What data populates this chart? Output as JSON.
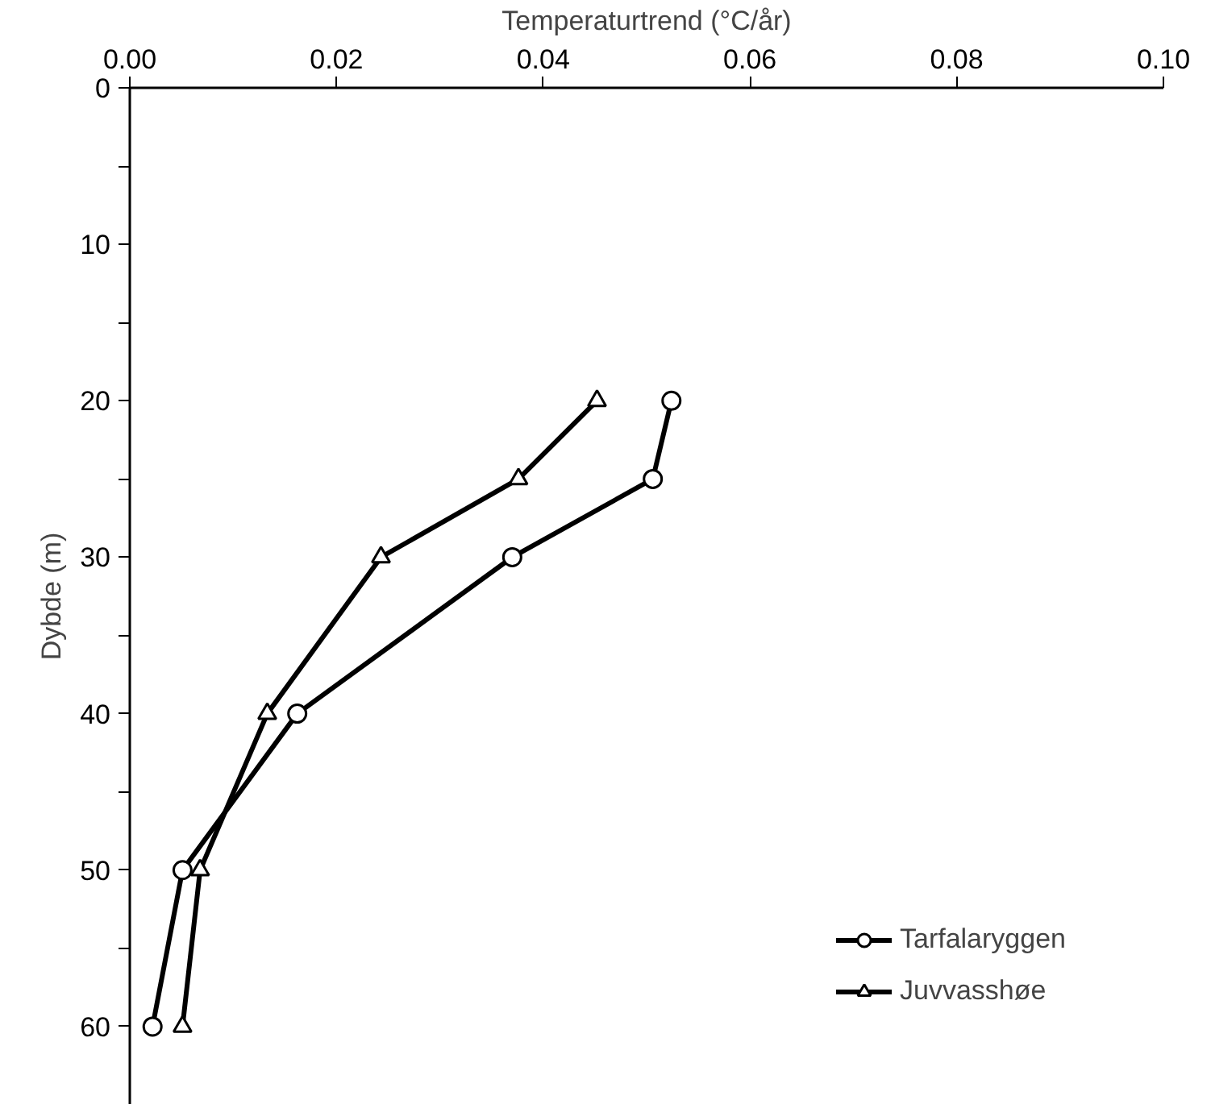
{
  "chart_data": {
    "type": "line",
    "xlabel": "Temperaturtrend (°C/år)",
    "ylabel": "Dybde (m)",
    "xlim": [
      0,
      0.1
    ],
    "xticks": [
      {
        "value": 0,
        "label": "0.00"
      },
      {
        "value": 0.02,
        "label": "0.02"
      },
      {
        "value": 0.04,
        "label": "0.04"
      },
      {
        "value": 0.06,
        "label": "0.06"
      },
      {
        "value": 0.08,
        "label": "0.08"
      },
      {
        "value": 0.1,
        "label": "0.10"
      }
    ],
    "ylim": [
      65,
      0
    ],
    "yticks": [
      0,
      {
        "value": 5,
        "label": null
      },
      10,
      {
        "value": 15,
        "label": null
      },
      20,
      {
        "value": 25,
        "label": null
      },
      30,
      {
        "value": 35,
        "label": null
      },
      40,
      {
        "value": 45,
        "label": null
      },
      50,
      {
        "value": 55,
        "label": null
      },
      60
    ],
    "grid": false,
    "legend": "bottom right",
    "line_style": "solid",
    "series": [
      {
        "name": "Tarfalaryggen",
        "color": "#000000",
        "marker": "circle",
        "x": [
          0.0524,
          0.0506,
          0.037,
          0.0162,
          0.0051,
          0.0022
        ],
        "values": [
          20,
          25,
          30,
          40,
          50,
          60
        ]
      },
      {
        "name": "Juvvasshøe",
        "color": "#000000",
        "marker": "triangle",
        "x": [
          0.0452,
          0.0376,
          0.0243,
          0.0133,
          0.0068,
          0.0051
        ],
        "values": [
          20,
          25,
          30,
          40,
          50,
          60
        ]
      }
    ]
  }
}
